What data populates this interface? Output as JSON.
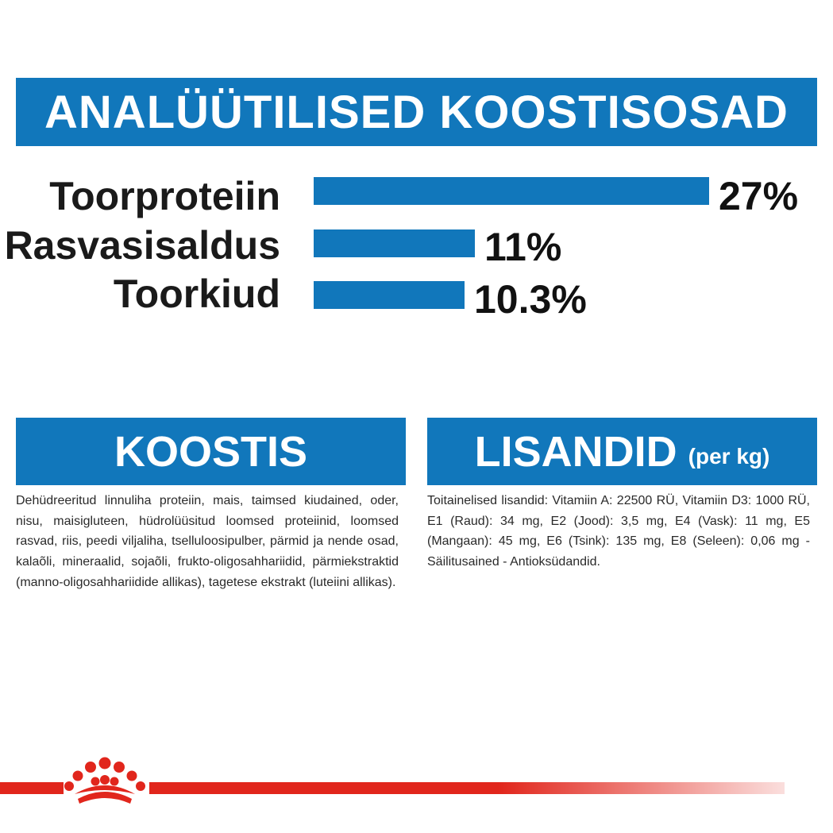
{
  "header": {
    "title": "ANALÜÜTILISED KOOSTISOSAD"
  },
  "nutrients": [
    {
      "label": "Toorproteiin",
      "value": 27,
      "display": "27%"
    },
    {
      "label": "Rasvasisaldus",
      "value": 11,
      "display": "11%"
    },
    {
      "label": "Toorkiud",
      "value": 10.3,
      "display": "10.3%"
    }
  ],
  "composition": {
    "title": "KOOSTIS",
    "text": "Dehüdreeritud linnuliha proteiin, mais, taimsed kiudained, oder, nisu, maisigluteen, hüdrolüüsitud loomsed proteiinid, loomsed rasvad, riis, peedi viljaliha, tselluloosipulber, pärmid ja nende osad, kalaõli, mineraalid, sojaõli, frukto-oligosahhariidid, pärmiekstraktid (manno-oligosahhariidide allikas), tagetese ekstrakt (luteiini allikas)."
  },
  "additives": {
    "title": "LISANDID",
    "unit": "(per kg)",
    "text": "Toitainelised lisandid: Vitamiin A: 22500 RÜ, Vitamiin D3: 1000 RÜ, E1 (Raud): 34 mg, E2 (Jood): 3,5 mg, E4 (Vask): 11 mg, E5 (Mangaan): 45 mg, E6 (Tsink): 135 mg, E8 (Seleen): 0,06 mg - Säilitusained - Antioksüdandid."
  },
  "colors": {
    "accent": "#1177bb",
    "brand_red": "#e1261c"
  },
  "logo": {
    "icon": "royal-canin-crown-icon"
  }
}
